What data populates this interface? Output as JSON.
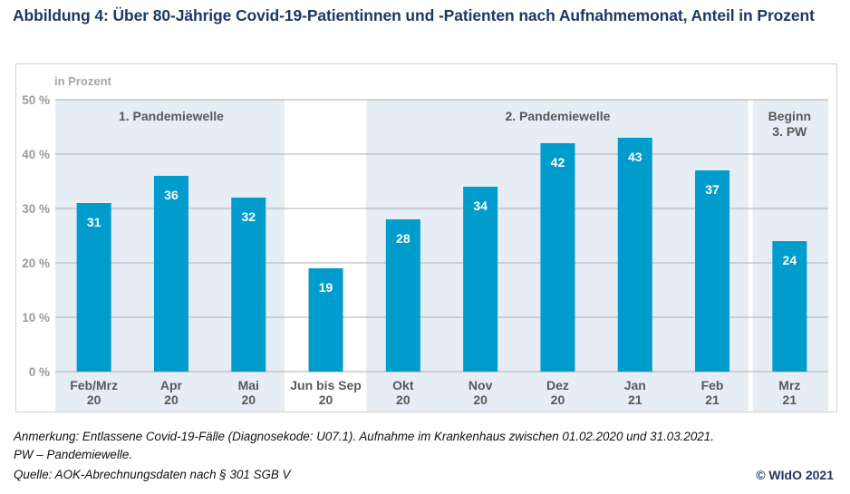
{
  "title": "Abbildung 4: Über 80-Jährige Covid-19-Patientinnen und -Patienten nach Aufnahmemonat, Anteil in Prozent",
  "notes": {
    "line1": "Anmerkung: Entlassene Covid-19-Fälle (Diagnosekode: U07.1). Aufnahme im Krankenhaus zwischen 01.02.2020 und 31.03.2021.",
    "line2": "PW – Pandemiewelle.",
    "source": "Quelle: AOK-Abrechnungsdaten nach § 301 SGB V"
  },
  "copyright": "© WIdO 2021",
  "colors": {
    "bar": "#009ccc",
    "wave_band": "#e6edf5",
    "title": "#1f3864",
    "axis_text": "#9a9a9a",
    "category_text": "#595959",
    "gridline": "#b0b0b0"
  },
  "chart_data": {
    "type": "bar",
    "title": "Über 80-Jährige Covid-19-Patientinnen und -Patienten nach Aufnahmemonat, Anteil in Prozent",
    "ylabel": "in Prozent",
    "xlabel": "",
    "ylim": [
      0,
      50
    ],
    "yticks": [
      0,
      10,
      20,
      30,
      40,
      50
    ],
    "ytick_labels": [
      "0 %",
      "10 %",
      "20 %",
      "30 %",
      "40 %",
      "50 %"
    ],
    "grid": true,
    "categories": [
      [
        "Feb/Mrz",
        "20"
      ],
      [
        "Apr",
        "20"
      ],
      [
        "Mai",
        "20"
      ],
      [
        "Jun bis Sep",
        "20"
      ],
      [
        "Okt",
        "20"
      ],
      [
        "Nov",
        "20"
      ],
      [
        "Dez",
        "20"
      ],
      [
        "Jan",
        "21"
      ],
      [
        "Feb",
        "21"
      ],
      [
        "Mrz",
        "21"
      ]
    ],
    "values": [
      31,
      36,
      32,
      19,
      28,
      34,
      42,
      43,
      37,
      24
    ],
    "data_labels": [
      "31",
      "36",
      "32",
      "19",
      "28",
      "34",
      "42",
      "43",
      "37",
      "24"
    ],
    "annotations": [
      {
        "label": [
          "1. Pandemiewelle"
        ],
        "from_index": 0,
        "to_index": 2
      },
      {
        "label": [
          "2. Pandemiewelle"
        ],
        "from_index": 4,
        "to_index": 8
      },
      {
        "label": [
          "Beginn",
          "3. PW"
        ],
        "from_index": 9,
        "to_index": 9
      }
    ]
  }
}
